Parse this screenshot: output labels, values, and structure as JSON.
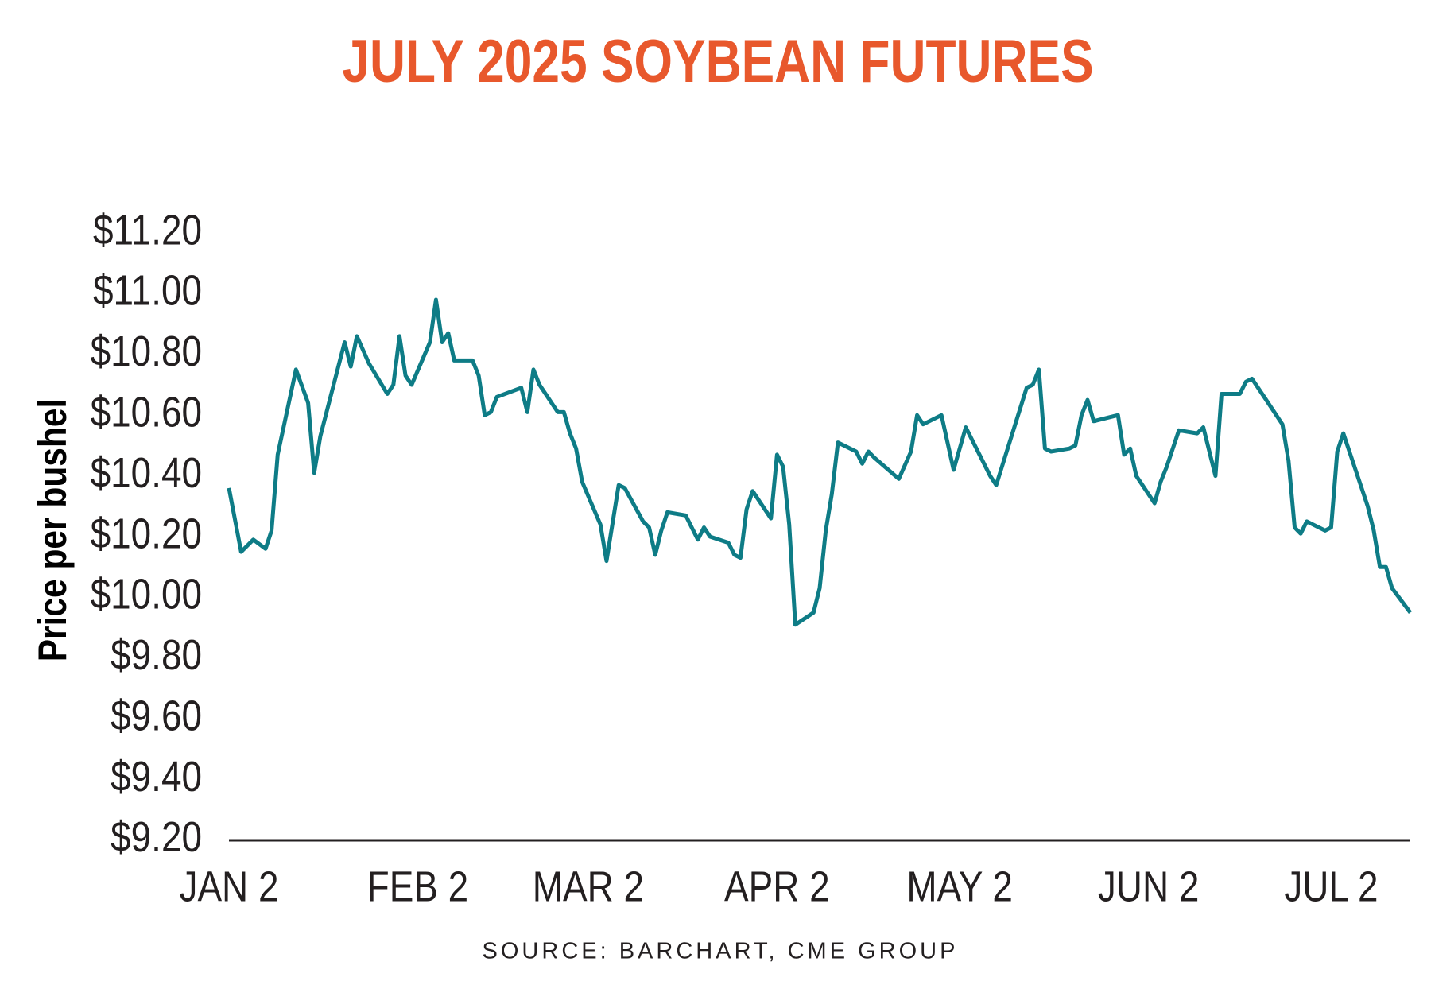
{
  "chart_data": {
    "type": "line",
    "title": "JULY 2025 SOYBEAN FUTURES",
    "y_label": "Price per bushel",
    "source": "SOURCE: BARCHART, CME GROUP",
    "x": [
      0,
      2,
      4,
      6,
      7,
      8,
      11,
      13,
      14,
      15,
      19,
      20,
      21,
      23,
      26,
      27,
      28,
      29,
      30,
      33,
      34,
      35,
      36,
      37,
      40,
      41,
      42,
      43,
      44,
      48,
      49,
      50,
      51,
      54,
      55,
      56,
      57,
      58,
      61,
      62,
      64,
      65,
      68,
      69,
      70,
      71,
      72,
      75,
      76,
      77,
      78,
      79,
      82,
      83,
      84,
      85,
      86,
      89,
      90,
      91,
      92,
      93,
      96,
      97,
      98,
      99,
      100,
      103,
      104,
      105,
      106,
      110,
      112,
      113,
      114,
      117,
      119,
      121,
      125,
      126,
      131,
      132,
      133,
      134,
      135,
      138,
      139,
      140,
      141,
      142,
      146,
      147,
      148,
      149,
      152,
      153,
      154,
      156,
      159,
      160,
      162,
      163,
      166,
      167,
      168,
      170,
      173,
      174,
      175,
      176,
      177,
      180,
      181,
      182,
      183,
      185,
      187,
      188,
      189,
      190,
      191,
      194
    ],
    "series": [
      {
        "color": "#0e7c86",
        "values": [
          10.36,
          10.15,
          10.19,
          10.16,
          10.22,
          10.47,
          10.75,
          10.64,
          10.41,
          10.53,
          10.84,
          10.76,
          10.86,
          10.77,
          10.67,
          10.7,
          10.86,
          10.73,
          10.7,
          10.84,
          10.98,
          10.84,
          10.87,
          10.78,
          10.78,
          10.73,
          10.6,
          10.61,
          10.66,
          10.69,
          10.61,
          10.75,
          10.7,
          10.61,
          10.61,
          10.54,
          10.49,
          10.38,
          10.24,
          10.12,
          10.37,
          10.36,
          10.25,
          10.23,
          10.14,
          10.22,
          10.28,
          10.27,
          10.23,
          10.19,
          10.23,
          10.2,
          10.18,
          10.14,
          10.13,
          10.29,
          10.35,
          10.26,
          10.47,
          10.43,
          10.24,
          9.91,
          9.95,
          10.03,
          10.22,
          10.34,
          10.51,
          10.48,
          10.44,
          10.48,
          10.46,
          10.39,
          10.48,
          10.6,
          10.57,
          10.6,
          10.42,
          10.56,
          10.4,
          10.37,
          10.69,
          10.7,
          10.75,
          10.49,
          10.48,
          10.49,
          10.5,
          10.6,
          10.65,
          10.58,
          10.6,
          10.47,
          10.49,
          10.4,
          10.31,
          10.38,
          10.43,
          10.55,
          10.54,
          10.56,
          10.4,
          10.67,
          10.67,
          10.71,
          10.72,
          10.66,
          10.57,
          10.45,
          10.23,
          10.21,
          10.25,
          10.22,
          10.23,
          10.48,
          10.54,
          10.42,
          10.3,
          10.22,
          10.1,
          10.1,
          10.03,
          9.95
        ]
      }
    ],
    "xlim": [
      0,
      194
    ],
    "xticks": [
      {
        "value": 0,
        "label": "JAN 2"
      },
      {
        "value": 31,
        "label": "FEB 2"
      },
      {
        "value": 59,
        "label": "MAR 2"
      },
      {
        "value": 90,
        "label": "APR 2"
      },
      {
        "value": 120,
        "label": "MAY 2"
      },
      {
        "value": 151,
        "label": "JUN 2"
      },
      {
        "value": 181,
        "label": "JUL 2"
      }
    ],
    "ylim": [
      9.2,
      11.2
    ],
    "yticks": [
      {
        "value": 9.2,
        "label": "$9.20"
      },
      {
        "value": 9.4,
        "label": "$9.40"
      },
      {
        "value": 9.6,
        "label": "$9.60"
      },
      {
        "value": 9.8,
        "label": "$9.80"
      },
      {
        "value": 10.0,
        "label": "$10.00"
      },
      {
        "value": 10.2,
        "label": "$10.20"
      },
      {
        "value": 10.4,
        "label": "$10.40"
      },
      {
        "value": 10.6,
        "label": "$10.60"
      },
      {
        "value": 10.8,
        "label": "$10.80"
      },
      {
        "value": 11.0,
        "label": "$11.00"
      },
      {
        "value": 11.2,
        "label": "$11.20"
      }
    ],
    "grid": false
  }
}
